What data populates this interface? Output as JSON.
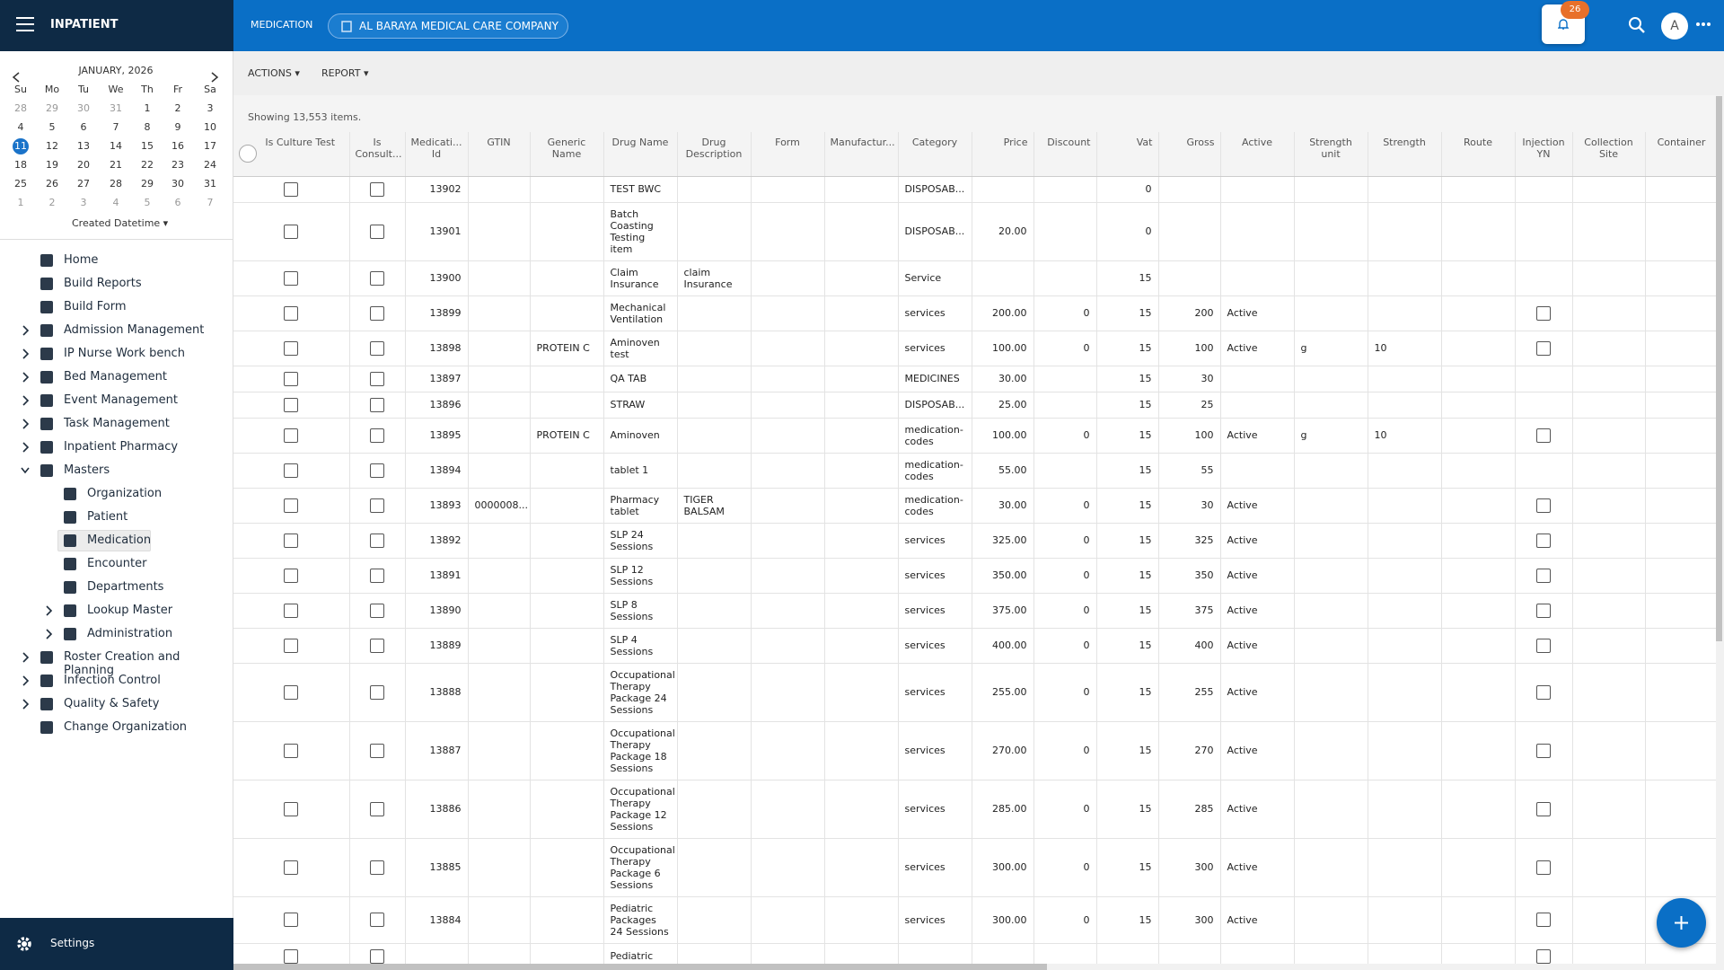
{
  "header": {
    "app_title": "INPATIENT",
    "section": "MEDICATION",
    "company": "AL BARAYA MEDICAL CARE COMPANY",
    "notifications": "26",
    "avatar": "A"
  },
  "calendar": {
    "month": "JANUARY, 2026",
    "weekdays": [
      "Su",
      "Mo",
      "Tu",
      "We",
      "Th",
      "Fr",
      "Sa"
    ],
    "today": 11,
    "weeks": [
      [
        28,
        29,
        30,
        31,
        1,
        2,
        3
      ],
      [
        4,
        5,
        6,
        7,
        8,
        9,
        10
      ],
      [
        11,
        12,
        13,
        14,
        15,
        16,
        17
      ],
      [
        18,
        19,
        20,
        21,
        22,
        23,
        24
      ],
      [
        25,
        26,
        27,
        28,
        29,
        30,
        31
      ],
      [
        1,
        2,
        3,
        4,
        5,
        6,
        7
      ]
    ],
    "sort": "Created Datetime"
  },
  "nav": [
    {
      "label": "Home",
      "level": 0
    },
    {
      "label": "Build Reports",
      "level": 0
    },
    {
      "label": "Build Form",
      "level": 0
    },
    {
      "label": "Admission Management",
      "level": 0,
      "expander": "closed"
    },
    {
      "label": "IP Nurse Work bench",
      "level": 0,
      "expander": "closed"
    },
    {
      "label": "Bed Management",
      "level": 0,
      "expander": "closed"
    },
    {
      "label": "Event Management",
      "level": 0,
      "expander": "closed"
    },
    {
      "label": "Task Management",
      "level": 0,
      "expander": "closed"
    },
    {
      "label": "Inpatient Pharmacy",
      "level": 0,
      "expander": "closed"
    },
    {
      "label": "Masters",
      "level": 0,
      "expander": "open"
    },
    {
      "label": "Organization",
      "level": 1
    },
    {
      "label": "Patient",
      "level": 1
    },
    {
      "label": "Medication",
      "level": 1,
      "selected": true
    },
    {
      "label": "Encounter",
      "level": 1
    },
    {
      "label": "Departments",
      "level": 1
    },
    {
      "label": "Lookup Master",
      "level": 1,
      "expander": "closed"
    },
    {
      "label": "Administration",
      "level": 1,
      "expander": "closed"
    },
    {
      "label": "Roster Creation and Planning",
      "level": 0,
      "expander": "closed"
    },
    {
      "label": "Infection Control",
      "level": 0,
      "expander": "closed"
    },
    {
      "label": "Quality & Safety",
      "level": 0,
      "expander": "closed"
    },
    {
      "label": "Change Organization",
      "level": 0
    }
  ],
  "footer": {
    "settings": "Settings"
  },
  "toolbar": {
    "actions": "ACTIONS",
    "report": "REPORT",
    "count": "Showing 13,553 items."
  },
  "table": {
    "columns": [
      "Is Culture Test",
      "Is Consult...",
      "Medicati... Id",
      "GTIN",
      "Generic Name",
      "Drug Name",
      "Drug Description",
      "Form",
      "Manufactur...",
      "Category",
      "Price",
      "Discount",
      "Vat",
      "Gross",
      "Active",
      "Strength unit",
      "Strength",
      "Route",
      "Injection YN",
      "Collection Site",
      "Container"
    ],
    "rows": [
      [
        false,
        false,
        13902,
        null,
        null,
        "TEST BWC",
        null,
        null,
        null,
        "DISPOSAB...",
        null,
        null,
        0,
        null,
        null,
        null,
        null,
        null,
        null,
        null,
        null
      ],
      [
        false,
        false,
        13901,
        null,
        null,
        "Batch Coasting Testing item",
        null,
        null,
        null,
        "DISPOSAB...",
        "20.00",
        null,
        0,
        null,
        null,
        null,
        null,
        null,
        null,
        null,
        null
      ],
      [
        false,
        false,
        13900,
        null,
        null,
        "Claim Insurance",
        "claim Insurance",
        null,
        null,
        "Service",
        null,
        null,
        15,
        null,
        null,
        null,
        null,
        null,
        null,
        null,
        null
      ],
      [
        false,
        false,
        13899,
        null,
        null,
        "Mechanical Ventilation",
        null,
        null,
        null,
        "services",
        "200.00",
        0,
        15,
        200,
        "Active",
        null,
        null,
        null,
        false,
        null,
        null
      ],
      [
        false,
        false,
        13898,
        null,
        "PROTEIN C",
        "Aminoven test",
        null,
        null,
        null,
        "services",
        "100.00",
        0,
        15,
        100,
        "Active",
        "g",
        10,
        null,
        false,
        null,
        null
      ],
      [
        false,
        false,
        13897,
        null,
        null,
        "QA TAB",
        null,
        null,
        null,
        "MEDICINES",
        "30.00",
        null,
        15,
        30,
        null,
        null,
        null,
        null,
        null,
        null,
        null
      ],
      [
        false,
        false,
        13896,
        null,
        null,
        "STRAW",
        null,
        null,
        null,
        "DISPOSAB...",
        "25.00",
        null,
        15,
        25,
        null,
        null,
        null,
        null,
        null,
        null,
        null
      ],
      [
        false,
        false,
        13895,
        null,
        "PROTEIN C",
        "Aminoven",
        null,
        null,
        null,
        "medication-codes",
        "100.00",
        0,
        15,
        100,
        "Active",
        "g",
        10,
        null,
        false,
        null,
        null
      ],
      [
        false,
        false,
        13894,
        null,
        null,
        "tablet 1",
        null,
        null,
        null,
        "medication-codes",
        "55.00",
        null,
        15,
        55,
        null,
        null,
        null,
        null,
        null,
        null,
        null
      ],
      [
        false,
        false,
        13893,
        "0000008...",
        null,
        "Pharmacy tablet",
        "TIGER BALSAM",
        null,
        null,
        "medication-codes",
        "30.00",
        0,
        15,
        30,
        "Active",
        null,
        null,
        null,
        false,
        null,
        null
      ],
      [
        false,
        false,
        13892,
        null,
        null,
        "SLP 24 Sessions",
        null,
        null,
        null,
        "services",
        "325.00",
        0,
        15,
        325,
        "Active",
        null,
        null,
        null,
        false,
        null,
        null
      ],
      [
        false,
        false,
        13891,
        null,
        null,
        "SLP 12 Sessions",
        null,
        null,
        null,
        "services",
        "350.00",
        0,
        15,
        350,
        "Active",
        null,
        null,
        null,
        false,
        null,
        null
      ],
      [
        false,
        false,
        13890,
        null,
        null,
        "SLP 8 Sessions",
        null,
        null,
        null,
        "services",
        "375.00",
        0,
        15,
        375,
        "Active",
        null,
        null,
        null,
        false,
        null,
        null
      ],
      [
        false,
        false,
        13889,
        null,
        null,
        "SLP 4 Sessions",
        null,
        null,
        null,
        "services",
        "400.00",
        0,
        15,
        400,
        "Active",
        null,
        null,
        null,
        false,
        null,
        null
      ],
      [
        false,
        false,
        13888,
        null,
        null,
        "Occupational Therapy Package 24 Sessions",
        null,
        null,
        null,
        "services",
        "255.00",
        0,
        15,
        255,
        "Active",
        null,
        null,
        null,
        false,
        null,
        null
      ],
      [
        false,
        false,
        13887,
        null,
        null,
        "Occupational Therapy Package 18 Sessions",
        null,
        null,
        null,
        "services",
        "270.00",
        0,
        15,
        270,
        "Active",
        null,
        null,
        null,
        false,
        null,
        null
      ],
      [
        false,
        false,
        13886,
        null,
        null,
        "Occupational Therapy Package 12 Sessions",
        null,
        null,
        null,
        "services",
        "285.00",
        0,
        15,
        285,
        "Active",
        null,
        null,
        null,
        false,
        null,
        null
      ],
      [
        false,
        false,
        13885,
        null,
        null,
        "Occupational Therapy Package 6 Sessions",
        null,
        null,
        null,
        "services",
        "300.00",
        0,
        15,
        300,
        "Active",
        null,
        null,
        null,
        false,
        null,
        null
      ],
      [
        false,
        false,
        13884,
        null,
        null,
        "Pediatric Packages 24 Sessions",
        null,
        null,
        null,
        "services",
        "300.00",
        0,
        15,
        300,
        "Active",
        null,
        null,
        null,
        false,
        null,
        null
      ],
      [
        false,
        false,
        null,
        null,
        null,
        "Pediatric",
        null,
        null,
        null,
        null,
        null,
        null,
        null,
        null,
        null,
        null,
        null,
        null,
        false,
        null,
        null
      ]
    ]
  }
}
